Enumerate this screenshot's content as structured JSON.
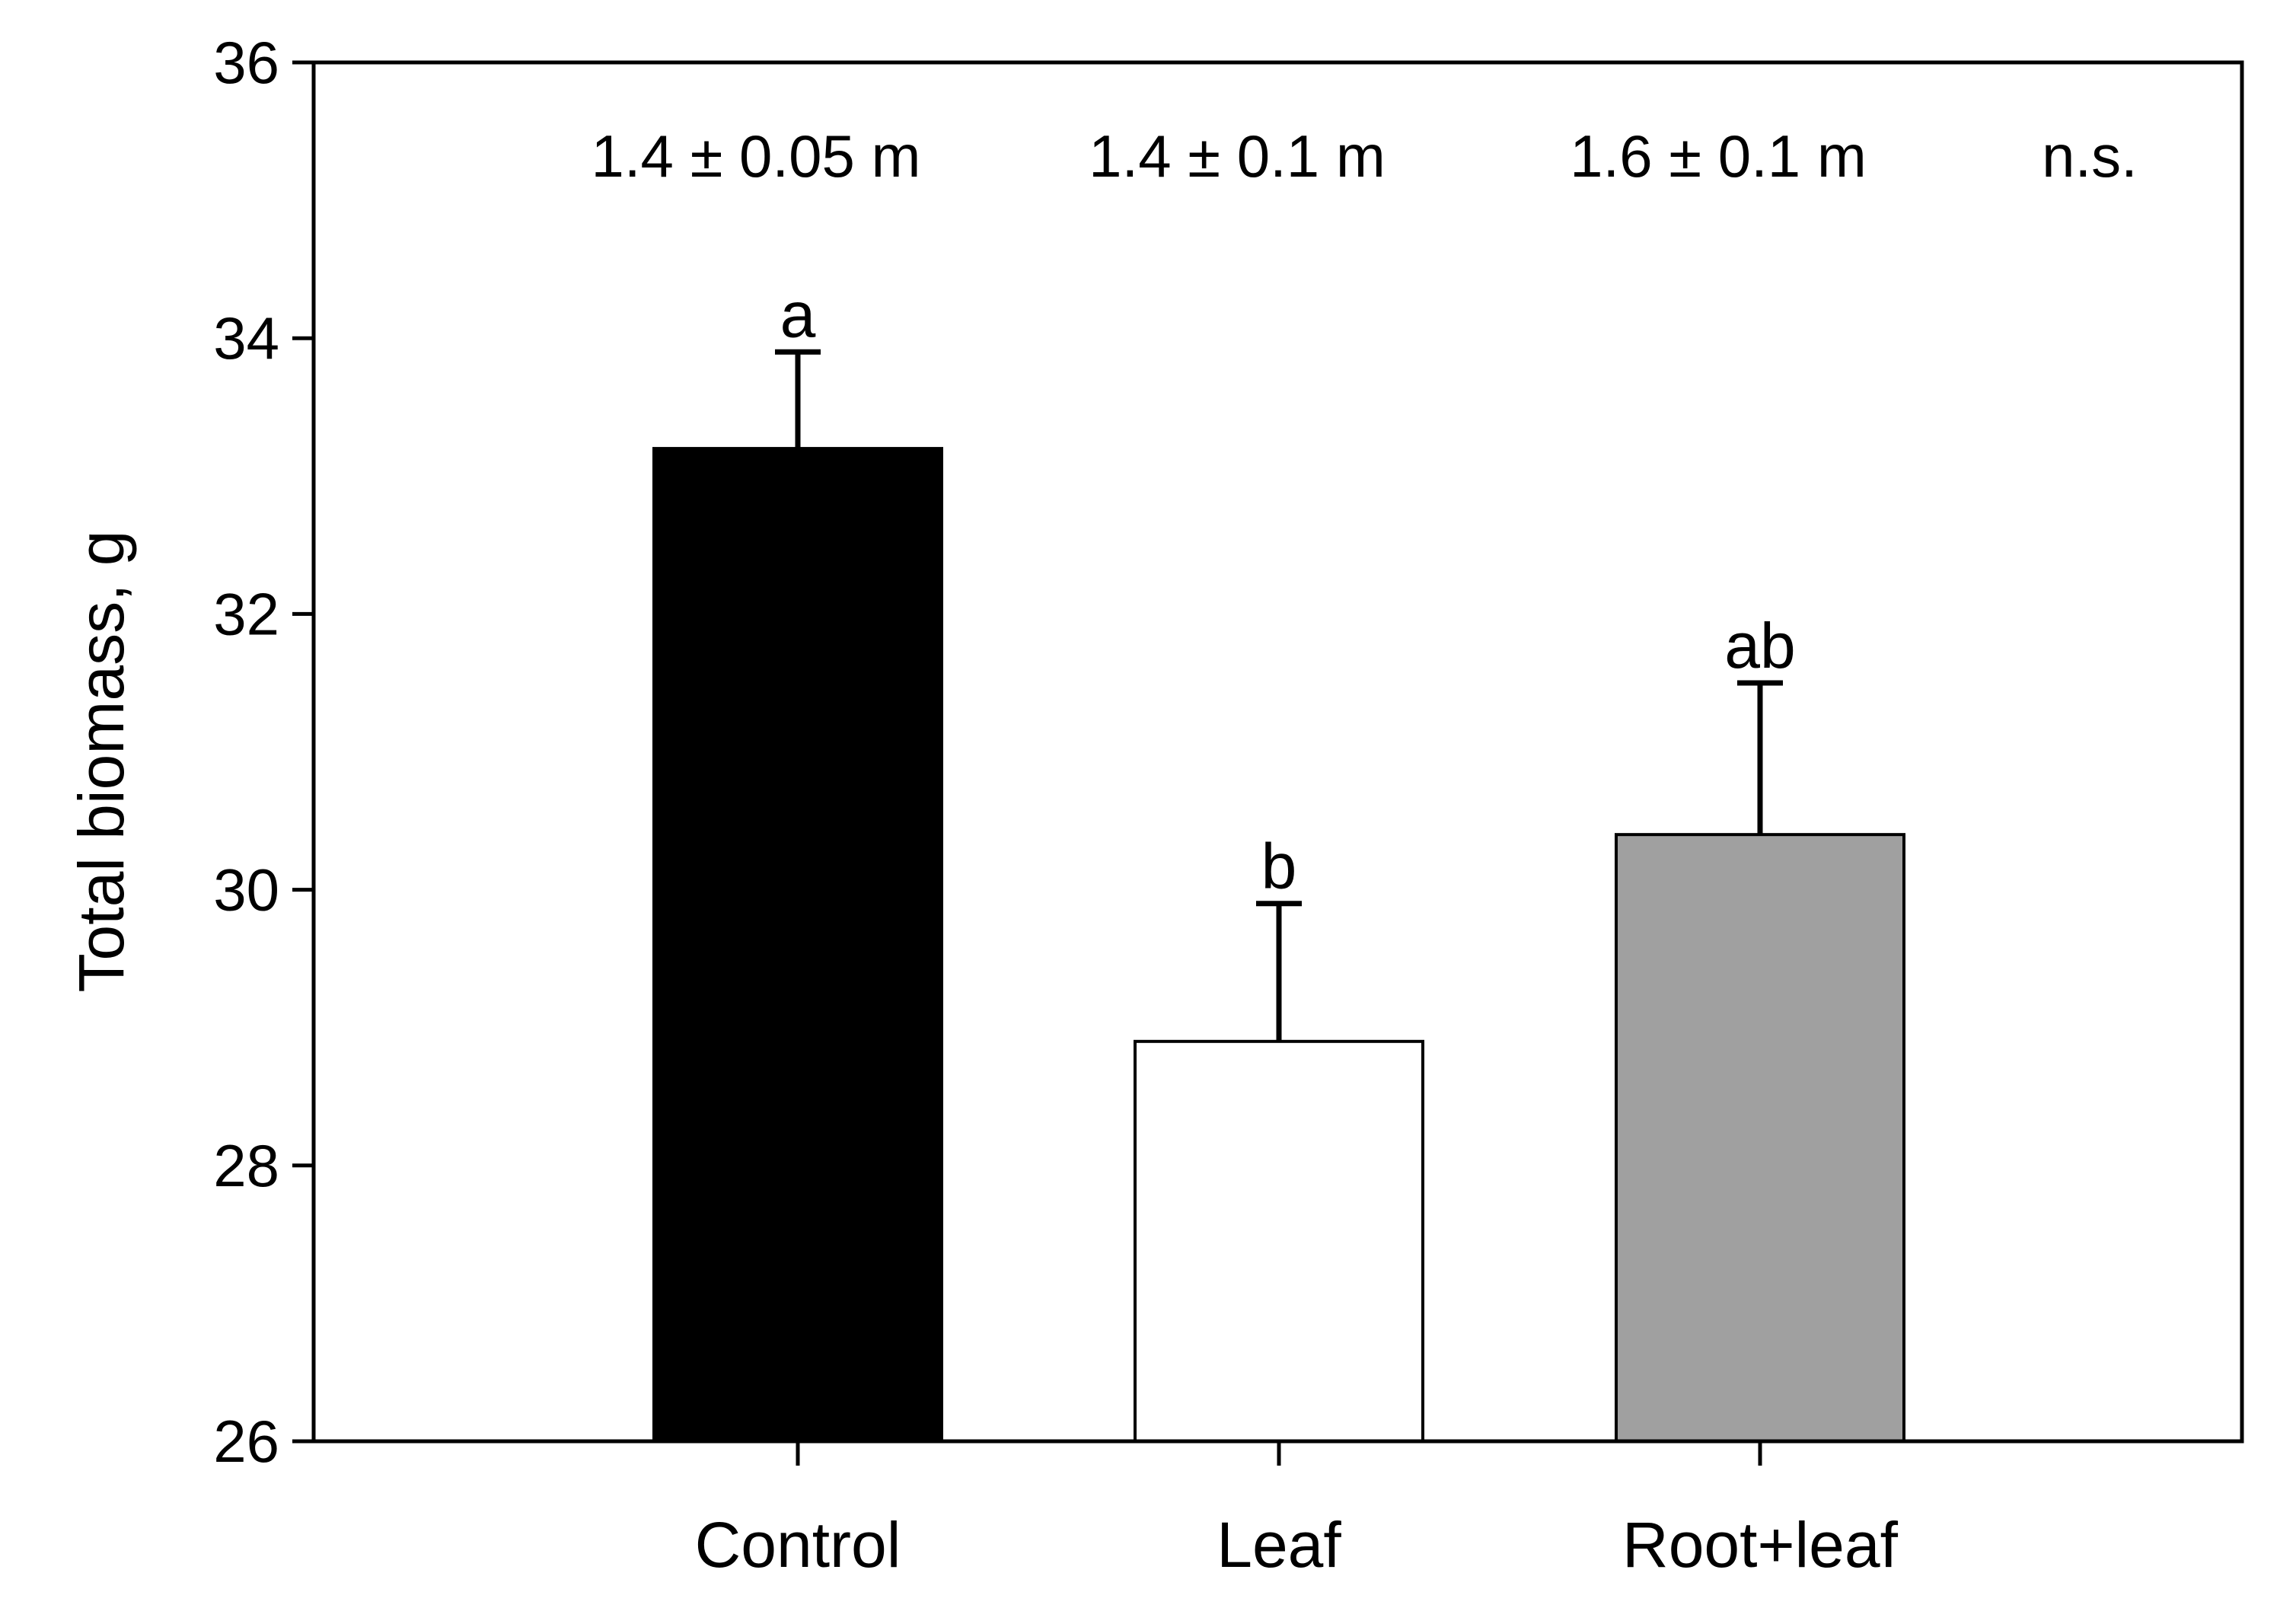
{
  "chart_data": {
    "type": "bar",
    "categories": [
      "Control",
      "Leaf",
      "Root+leaf"
    ],
    "values": [
      33.2,
      28.9,
      30.4
    ],
    "errors": [
      0.7,
      1.0,
      1.1
    ],
    "bar_colors": [
      "#000000",
      "#ffffff",
      "#a0a0a0"
    ],
    "significance_letters": [
      "a",
      "b",
      "ab"
    ],
    "height_annotations": [
      "1.4 ± 0.05 m",
      "1.4 ± 0.1 m",
      "1.6 ± 0.1 m"
    ],
    "height_significance": "n.s.",
    "ylabel": "Total biomass, g",
    "xlabel": "",
    "title": "",
    "ylim": [
      26,
      36
    ],
    "yticks": [
      26,
      28,
      30,
      32,
      34,
      36
    ],
    "grid": false,
    "legend": "none"
  }
}
